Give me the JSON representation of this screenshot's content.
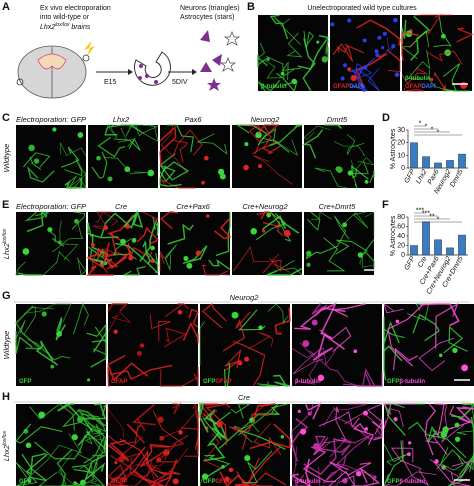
{
  "panel_labels": [
    "A",
    "B",
    "C",
    "D",
    "E",
    "F",
    "G",
    "H"
  ],
  "panel_a": {
    "line_1": "Ex vivo electroporation",
    "line_2": "into wild-type or",
    "line_3_base": "Lhx2",
    "line_3_sup": "lox/lox",
    "line_3_end": " brains",
    "age": "E15",
    "culture": "5DIV",
    "legend_1": "Neurons (triangles)",
    "legend_2": "Astrocytes (stars)"
  },
  "panel_b": {
    "title": "Unelectroporated wild type cultures"
  },
  "channels": {
    "gfp": "GFP",
    "gfap": "GFAP",
    "tubulin": "β-tubulin",
    "dapi": "DAPI"
  },
  "panel_c": {
    "row_label": "Wildtype",
    "columns": [
      "Electroporation: GFP",
      "Lhx2",
      "Pax6",
      "Neurog2",
      "Dmrt5"
    ]
  },
  "panel_e": {
    "row_label_base": "Lhx2",
    "row_label_sup": "lox/lox",
    "columns": [
      "Electroporation: GFP",
      "Cre",
      "Cre+Pax6",
      "Cre+Neurog2",
      "Cre+Dmrt5"
    ]
  },
  "panel_g": {
    "title": "Neurog2",
    "row_label": "Wildtype"
  },
  "panel_h": {
    "title": "Cre",
    "row_label_base": "Lhx2",
    "row_label_sup": "lox/lox"
  },
  "chart_data": [
    {
      "type": "bar",
      "ylabel": "% Astrocytes",
      "categories": [
        "GFP",
        "Lhx2",
        "Pax6",
        "Neurog2",
        "Dmrt5"
      ],
      "values": [
        20,
        9,
        4,
        6,
        11
      ],
      "color": "#3a7cc3",
      "ylim": [
        0,
        30
      ],
      "yticks": [
        0,
        10,
        20,
        30
      ],
      "significance": [
        "*",
        "*",
        "*",
        "*"
      ]
    },
    {
      "type": "bar",
      "ylabel": "% Astrocytes",
      "categories": [
        "GFP",
        "Cre",
        "Cre+Pax6",
        "Cre+Neurog2",
        "Cre+Dmrt5"
      ],
      "values": [
        20,
        70,
        32,
        15,
        42
      ],
      "color": "#3a7cc3",
      "ylim": [
        0,
        80
      ],
      "yticks": [
        0,
        20,
        40,
        60,
        80
      ],
      "significance": [
        "***",
        "***",
        "**",
        "*"
      ]
    }
  ]
}
